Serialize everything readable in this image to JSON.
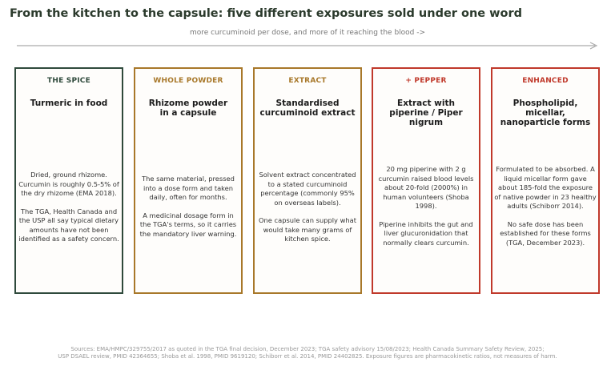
{
  "title": "From the kitchen to the capsule: five different exposures sold under one word",
  "subtitle": "more curcuminoid per dose, and more of it reaching the blood  ->",
  "cards": [
    {
      "category": "THE SPICE",
      "heading": "Turmeric in food",
      "body": [
        "Dried, ground rhizome. Curcumin is roughly 0.5-5% of the dry rhizome (EMA 2018).",
        "The TGA, Health Canada and the USP all say typical dietary amounts have not been identified as a safety concern."
      ],
      "color": "#2f4a3c"
    },
    {
      "category": "WHOLE POWDER",
      "heading": "Rhizome powder\nin a capsule",
      "body": [
        "The same material, pressed into a dose form and taken daily, often for months.",
        "A medicinal dosage form in the TGA's terms, so it carries the mandatory liver warning."
      ],
      "color": "#a8782a"
    },
    {
      "category": "EXTRACT",
      "heading": "Standardised\ncurcuminoid extract",
      "body": [
        "Solvent extract concentrated to a stated curcuminoid percentage (commonly 95% on overseas labels).",
        "One capsule can supply what would take many grams of kitchen spice."
      ],
      "color": "#a8782a"
    },
    {
      "category": "+ PEPPER",
      "heading": "Extract with\npiperine / Piper nigrum",
      "body": [
        "20 mg piperine with 2 g curcumin raised blood levels about 20-fold (2000%) in human volunteers (Shoba 1998).",
        "Piperine inhibits the gut and liver glucuronidation that normally clears curcumin."
      ],
      "color": "#c0392b"
    },
    {
      "category": "ENHANCED",
      "heading": "Phospholipid, micellar,\nnanoparticle forms",
      "body": [
        "Formulated to be absorbed. A liquid micellar form gave about 185-fold the exposure of native powder in 23 healthy adults (Schiborr 2014).",
        "No safe dose has been established for these forms (TGA, December 2023)."
      ],
      "color": "#c0392b"
    }
  ],
  "sources": "Sources: EMA/HMPC/329755/2017 as quoted in the TGA final decision, December 2023; TGA safety advisory 15/08/2023; Health Canada Summary Safety Review, 2025;\nUSP DSAEL review, PMID 42364655; Shoba et al. 1998, PMID 9619120; Schiborr et al. 2014, PMID 24402825. Exposure figures are pharmacokinetic ratios, not measures of harm."
}
